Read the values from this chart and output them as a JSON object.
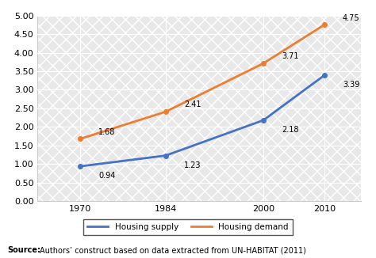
{
  "years": [
    1970,
    1984,
    2000,
    2010
  ],
  "housing_supply": [
    0.94,
    1.23,
    2.18,
    3.39
  ],
  "housing_demand": [
    1.68,
    2.41,
    3.71,
    4.75
  ],
  "supply_color": "#4472C4",
  "demand_color": "#ED7D31",
  "ylim": [
    0.0,
    5.0
  ],
  "yticks": [
    0.0,
    0.5,
    1.0,
    1.5,
    2.0,
    2.5,
    3.0,
    3.5,
    4.0,
    4.5,
    5.0
  ],
  "xticks": [
    1970,
    1984,
    2000,
    2010
  ],
  "supply_label": "Housing supply",
  "demand_label": "Housing demand",
  "source_text": "Authors’ construct based on data extracted from UN-HABITAT (2011)",
  "source_bold": "Source:",
  "hatch_color": "#d8d8d8",
  "bg_color": "#f0f0f0"
}
